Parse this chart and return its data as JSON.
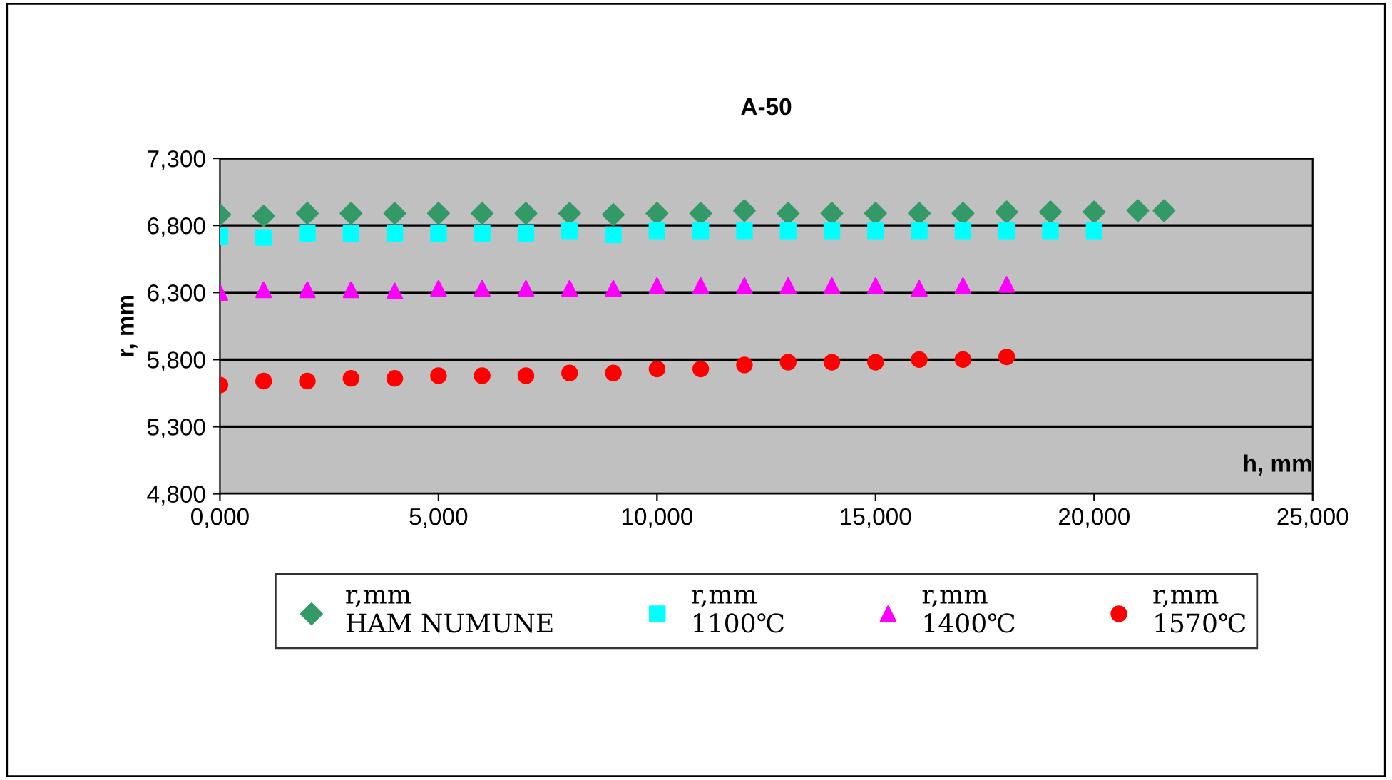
{
  "chart_data": {
    "type": "scatter",
    "title": "A-50",
    "xlabel": "h, mm",
    "ylabel": "r, mm",
    "xlim": [
      0,
      25000
    ],
    "xticks": [
      {
        "value": 0,
        "label": "0,000"
      },
      {
        "value": 5000,
        "label": "5,000"
      },
      {
        "value": 10000,
        "label": "10,000"
      },
      {
        "value": 15000,
        "label": "15,000"
      },
      {
        "value": 20000,
        "label": "20,000"
      },
      {
        "value": 25000,
        "label": "25,000"
      }
    ],
    "ylim": [
      4800,
      7300
    ],
    "yticks": [
      {
        "value": 4800,
        "label": "4,800"
      },
      {
        "value": 5300,
        "label": "5,300"
      },
      {
        "value": 5800,
        "label": "5,800"
      },
      {
        "value": 6300,
        "label": "6,300"
      },
      {
        "value": 6800,
        "label": "6,800"
      },
      {
        "value": 7300,
        "label": "7,300"
      }
    ],
    "grid": "y",
    "legend": "bottom",
    "series": [
      {
        "name": "r,mm\nHAM NUMUNE",
        "color": "#339966",
        "marker": "diamond",
        "x": [
          0,
          1000,
          2000,
          3000,
          4000,
          5000,
          6000,
          7000,
          8000,
          9000,
          10000,
          11000,
          12000,
          13000,
          14000,
          15000,
          16000,
          17000,
          18000,
          19000,
          20000,
          21000,
          21600
        ],
        "values": [
          6880,
          6870,
          6890,
          6890,
          6890,
          6890,
          6890,
          6890,
          6890,
          6880,
          6890,
          6890,
          6910,
          6890,
          6890,
          6890,
          6890,
          6890,
          6900,
          6900,
          6900,
          6910,
          6910
        ]
      },
      {
        "name": "r,mm\n1100℃",
        "color": "#00ffff",
        "marker": "square",
        "x": [
          0,
          1000,
          2000,
          3000,
          4000,
          5000,
          6000,
          7000,
          8000,
          9000,
          10000,
          11000,
          12000,
          13000,
          14000,
          15000,
          16000,
          17000,
          18000,
          19000,
          20000
        ],
        "values": [
          6720,
          6710,
          6740,
          6740,
          6740,
          6740,
          6740,
          6740,
          6760,
          6730,
          6760,
          6760,
          6760,
          6760,
          6760,
          6760,
          6760,
          6760,
          6760,
          6760,
          6760
        ]
      },
      {
        "name": "r,mm\n1400℃",
        "color": "#ff00ff",
        "marker": "triangle",
        "x": [
          0,
          1000,
          2000,
          3000,
          4000,
          5000,
          6000,
          7000,
          8000,
          9000,
          10000,
          11000,
          12000,
          13000,
          14000,
          15000,
          16000,
          17000,
          18000
        ],
        "values": [
          6300,
          6320,
          6320,
          6320,
          6310,
          6330,
          6330,
          6330,
          6330,
          6330,
          6350,
          6350,
          6350,
          6350,
          6350,
          6350,
          6330,
          6350,
          6360
        ]
      },
      {
        "name": "r,mm\n1570℃",
        "color": "#ff0000",
        "marker": "circle",
        "x": [
          0,
          1000,
          2000,
          3000,
          4000,
          5000,
          6000,
          7000,
          8000,
          9000,
          10000,
          11000,
          12000,
          13000,
          14000,
          15000,
          16000,
          17000,
          18000
        ],
        "values": [
          5610,
          5640,
          5640,
          5660,
          5660,
          5680,
          5680,
          5680,
          5700,
          5700,
          5730,
          5730,
          5760,
          5780,
          5780,
          5780,
          5800,
          5800,
          5820
        ]
      }
    ]
  }
}
